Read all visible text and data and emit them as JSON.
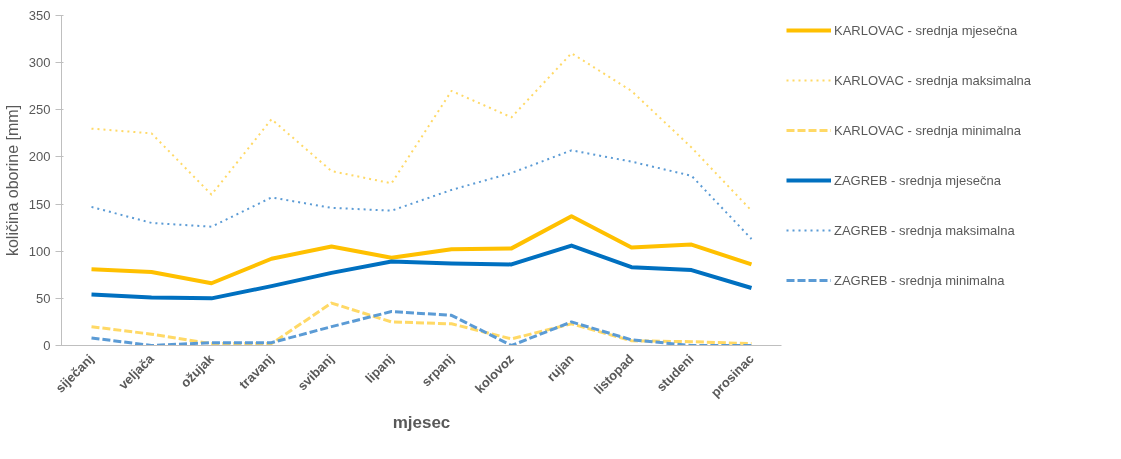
{
  "chart_data": {
    "type": "line",
    "xlabel": "mjesec",
    "ylabel": "količina oborine [mm]",
    "categories": [
      "siječanj",
      "veljača",
      "ožujak",
      "travanj",
      "svibanj",
      "lipanj",
      "srpanj",
      "kolovoz",
      "rujan",
      "listopad",
      "studeni",
      "prosinac"
    ],
    "ylim": [
      0,
      350
    ],
    "yticks": [
      0,
      50,
      100,
      150,
      200,
      250,
      300,
      350
    ],
    "grid": false,
    "legend": "right",
    "marker": "none",
    "series": [
      {
        "name": "KARLOVAC - srednja mjesečna",
        "color": "#ffc000",
        "line_style": "solid",
        "values": [
          81,
          78,
          66,
          92,
          105,
          93,
          102,
          103,
          137,
          104,
          107,
          86
        ]
      },
      {
        "name": "KARLOVAC - srednja maksimalna",
        "color": "#ffd966",
        "line_style": "dotted",
        "values": [
          230,
          225,
          160,
          240,
          185,
          172,
          270,
          242,
          310,
          270,
          210,
          143
        ]
      },
      {
        "name": "KARLOVAC - srednja minimalna",
        "color": "#ffd966",
        "line_style": "dashed",
        "values": [
          20,
          12,
          2,
          2,
          45,
          25,
          23,
          7,
          23,
          5,
          4,
          2
        ]
      },
      {
        "name": "ZAGREB - srednja mjesečna",
        "color": "#0070c0",
        "line_style": "solid",
        "values": [
          54,
          51,
          50,
          63,
          77,
          89,
          87,
          86,
          106,
          83,
          80,
          61
        ]
      },
      {
        "name": "ZAGREB - srednja maksimalna",
        "color": "#5b9bd5",
        "line_style": "dotted",
        "values": [
          147,
          130,
          126,
          157,
          146,
          143,
          165,
          183,
          207,
          195,
          180,
          113
        ]
      },
      {
        "name": "ZAGREB - srednja minimalna",
        "color": "#5b9bd5",
        "line_style": "dashed",
        "values": [
          8,
          0,
          3,
          3,
          20,
          36,
          32,
          0,
          25,
          6,
          0,
          0
        ]
      }
    ]
  }
}
